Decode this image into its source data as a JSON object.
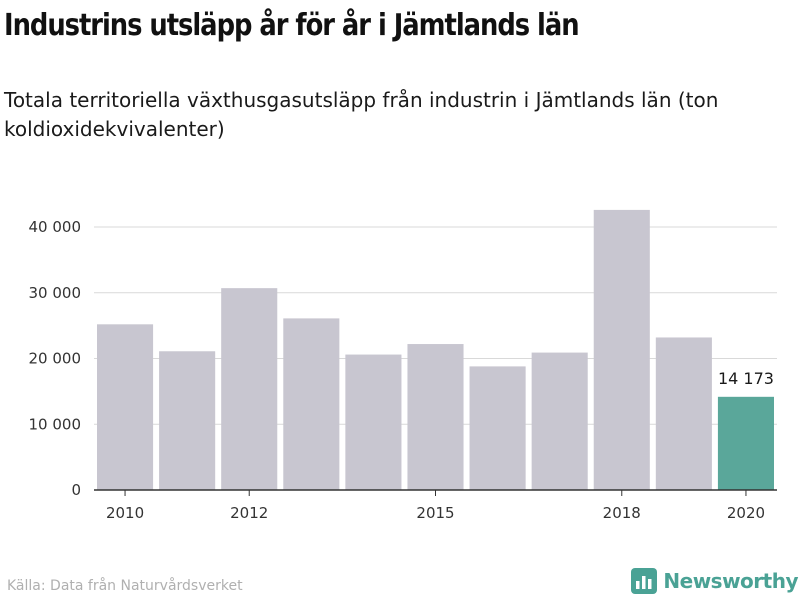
{
  "header": {
    "title": "Industrins utsläpp år för år i Jämtlands län",
    "subtitle": "Totala territoriella växthusgasutsläpp från industrin i Jämtlands län (ton koldioxidekvivalenter)"
  },
  "footer": {
    "source": "Källa: Data från Naturvårdsverket",
    "brand": "Newsworthy",
    "brand_icon": "bar-chart-logo-icon"
  },
  "colors": {
    "bar": "#c8c6d0",
    "highlight": "#5aa79a",
    "grid": "#d9d9d9",
    "axis": "#333333",
    "brand": "#4aa295"
  },
  "chart_data": {
    "type": "bar",
    "x": [
      2010,
      2011,
      2012,
      2013,
      2014,
      2015,
      2016,
      2017,
      2018,
      2019,
      2020
    ],
    "values": [
      25200,
      21100,
      30700,
      26100,
      20600,
      22200,
      18800,
      20900,
      42600,
      23200,
      14173
    ],
    "highlight_index": 10,
    "annotation": {
      "label": "14 173"
    },
    "x_tick_labels": [
      "2010",
      "2012",
      "2015",
      "2018",
      "2020"
    ],
    "y_ticks": [
      0,
      10000,
      20000,
      30000,
      40000
    ],
    "y_tick_labels": [
      "0",
      "10 000",
      "20 000",
      "30 000",
      "40 000"
    ],
    "ylim": [
      0,
      45000
    ],
    "grid": true,
    "xlabel": "",
    "ylabel": ""
  }
}
